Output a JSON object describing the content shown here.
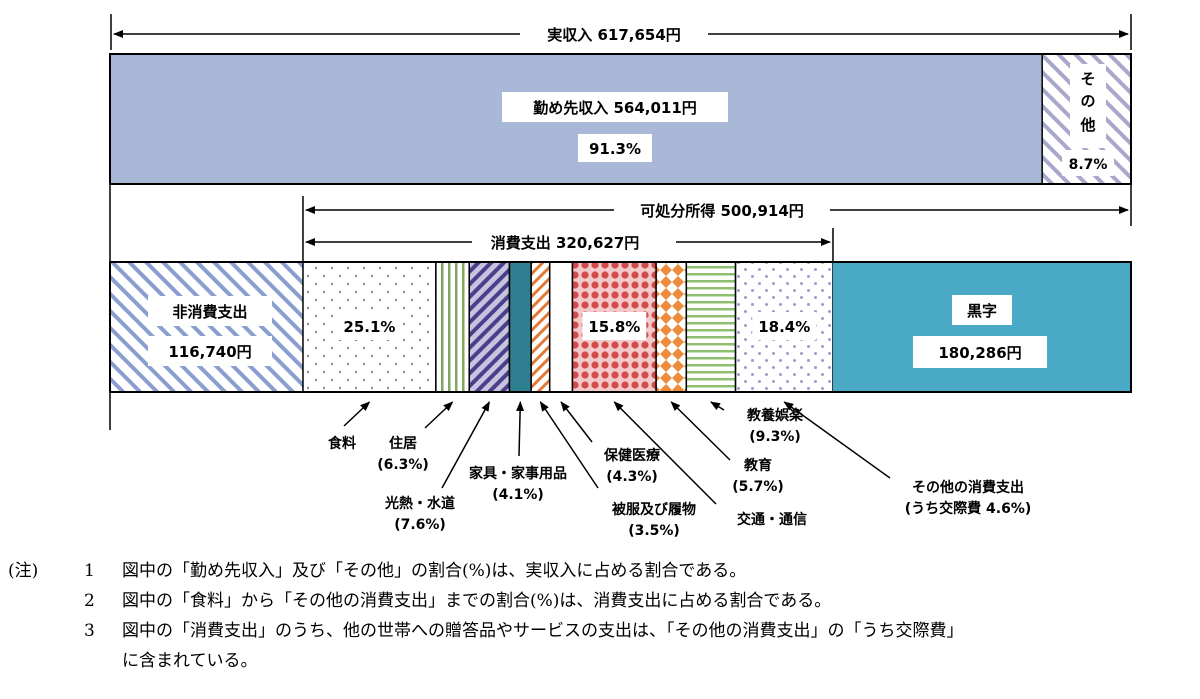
{
  "income_bar": {
    "total_label": "実収入 617,654円",
    "wages": {
      "label": "勤め先収入 564,011円",
      "percent": "91.3%",
      "share": 91.3
    },
    "other": {
      "label_chars": [
        "そ",
        "の",
        "他"
      ],
      "percent": "8.7%",
      "share": 8.7
    }
  },
  "expenditure_bar": {
    "disposable_label": "可処分所得 500,914円",
    "consumption_label": "消費支出 320,627円",
    "amounts_yen": {
      "non_consumption": 116740,
      "consumption": 320627,
      "surplus": 180286
    },
    "non_consumption": {
      "label": "非消費支出",
      "amount": "116,740円"
    },
    "surplus": {
      "label": "黒字",
      "amount": "180,286円"
    },
    "categories": [
      {
        "key": "food",
        "share": 25.1,
        "bar_label": "25.1%",
        "callout": [
          "食料"
        ]
      },
      {
        "key": "housing",
        "share": 6.3,
        "bar_label": "",
        "callout": [
          "住居",
          "(6.3%)"
        ]
      },
      {
        "key": "utilities",
        "share": 7.6,
        "bar_label": "",
        "callout": [
          "光熱・水道",
          "(7.6%)"
        ]
      },
      {
        "key": "furniture",
        "share": 4.1,
        "bar_label": "",
        "callout": [
          "家具・家事用品",
          "(4.1%)"
        ]
      },
      {
        "key": "clothing",
        "share": 3.5,
        "bar_label": "",
        "callout": [
          "被服及び履物",
          "(3.5%)"
        ]
      },
      {
        "key": "medical",
        "share": 4.3,
        "bar_label": "",
        "callout": [
          "保健医療",
          "(4.3%)"
        ]
      },
      {
        "key": "transport",
        "share": 15.8,
        "bar_label": "15.8%",
        "callout": [
          "交通・通信"
        ]
      },
      {
        "key": "education",
        "share": 5.7,
        "bar_label": "",
        "callout": [
          "教育",
          "(5.7%)"
        ]
      },
      {
        "key": "recreation",
        "share": 9.3,
        "bar_label": "",
        "callout": [
          "教養娯楽",
          "(9.3%)"
        ]
      },
      {
        "key": "other_consumption",
        "share": 18.4,
        "bar_label": "18.4%",
        "callout": [
          "その他の消費支出",
          "(うち交際費 4.6%)"
        ]
      }
    ]
  },
  "colors": {
    "wages_fill": "#a9b8d6",
    "surplus_fill": "#4aaac6",
    "hatch_blue": "#8a9fd0",
    "hatch_purple": "#a9a7cc",
    "dots_gray": "#8a8a8a",
    "stripe_green": "#7fa85e",
    "stripe_purple": "#4a3f8a",
    "solid_teal": "#2e7f90",
    "stripe_orange": "#e07a38",
    "dots_red": "#d34c4c",
    "diamond_orange": "#ee8a3c",
    "hstripe_green": "#8ebf6f",
    "dots_purple": "#a39ac8"
  },
  "notes": {
    "prefix": "(注)",
    "items": [
      {
        "num": "1",
        "text": "図中の「勤め先収入」及び「その他」の割合(%)は、実収入に占める割合である。"
      },
      {
        "num": "2",
        "text": "図中の「食料」から「その他の消費支出」までの割合(%)は、消費支出に占める割合である。"
      },
      {
        "num": "3",
        "text": "図中の「消費支出」のうち、他の世帯への贈答品やサービスの支出は、「その他の消費支出」の「うち交際費」"
      },
      {
        "num": "",
        "text": "に含まれている。"
      }
    ]
  }
}
